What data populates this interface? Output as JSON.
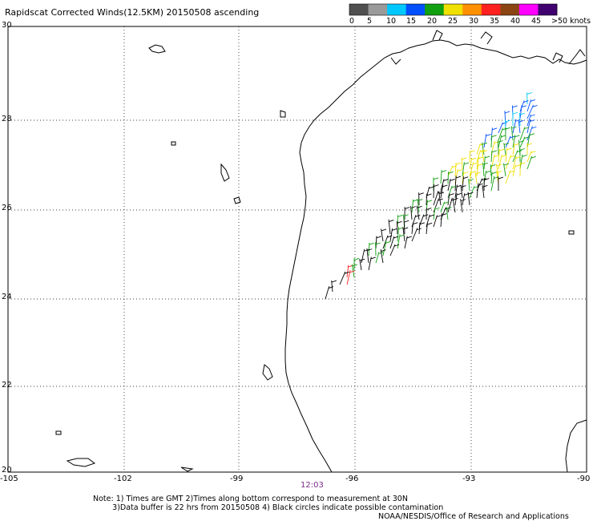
{
  "title": "Rapidscat Corrected Winds(12.5KM) 20150508 ascending",
  "colorbar": {
    "labels": [
      "0",
      "5",
      "10",
      "15",
      "20",
      "25",
      "30",
      "35",
      "40",
      "45",
      ">50 knots"
    ],
    "colors": [
      "#505050",
      "#9a9a9a",
      "#00c8ff",
      "#0050ff",
      "#10a010",
      "#f0e000",
      "#ff9000",
      "#ff2020",
      "#8b4513",
      "#ff00ff",
      "#400070"
    ]
  },
  "axes": {
    "lon_labels": [
      "-105",
      "-102",
      "-99",
      "-96",
      "-93",
      "-90"
    ],
    "lat_labels": [
      "30",
      "28",
      "26",
      "24",
      "22",
      "20"
    ]
  },
  "time_label": "12:03",
  "notes": "Note: 1) Times are GMT 2)Times along bottom correspond to measurement at 30N\n        3)Data buffer is 22 hrs from 20150508 4) Black circles indicate possible contamination",
  "credit": "NOAA/NESDIS/Office of Research and Applications"
}
